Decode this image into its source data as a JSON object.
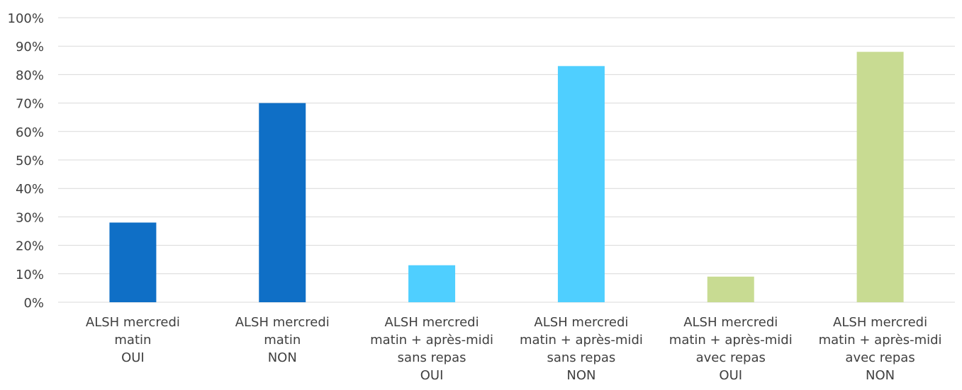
{
  "chart_data": {
    "type": "bar",
    "title": "",
    "xlabel": "",
    "ylabel": "",
    "ylim": [
      0,
      100
    ],
    "yticks": [
      "0%",
      "10%",
      "20%",
      "30%",
      "40%",
      "50%",
      "60%",
      "70%",
      "80%",
      "90%",
      "100%"
    ],
    "grid": true,
    "legend": "none",
    "categories": [
      [
        "ALSH mercredi",
        "matin",
        "OUI"
      ],
      [
        "ALSH mercredi",
        "matin",
        "NON"
      ],
      [
        "ALSH mercredi",
        "matin + après-midi",
        "sans repas",
        "OUI"
      ],
      [
        "ALSH mercredi",
        "matin + après-midi",
        "sans repas",
        "NON"
      ],
      [
        "ALSH mercredi",
        "matin + après-midi",
        "avec repas",
        "OUI"
      ],
      [
        "ALSH mercredi",
        "matin + après-midi",
        "avec repas",
        "NON"
      ]
    ],
    "values": [
      28,
      70,
      13,
      83,
      9,
      88
    ],
    "bar_colors": [
      "#0F6FC6",
      "#0F6FC6",
      "#4FCFFF",
      "#4FCFFF",
      "#C8DB92",
      "#C8DB92"
    ],
    "grid_color": "#D9D9D9"
  }
}
